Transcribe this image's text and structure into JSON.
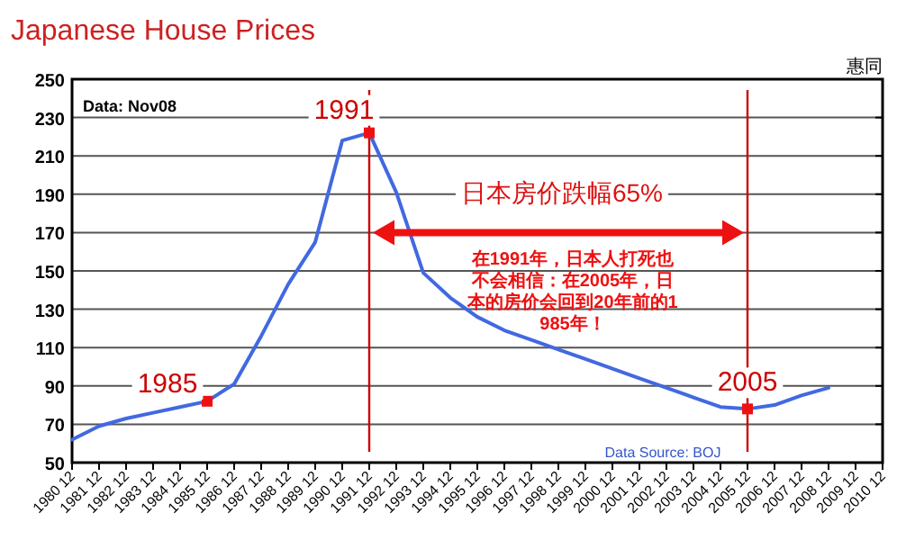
{
  "chart_data": {
    "type": "line",
    "title": "Japanese House Prices",
    "categories": [
      "1980 12",
      "1981 12",
      "1982 12",
      "1983 12",
      "1984 12",
      "1985 12",
      "1986 12",
      "1987 12",
      "1988 12",
      "1989 12",
      "1990 12",
      "1991 12",
      "1992 12",
      "1993 12",
      "1994 12",
      "1995 12",
      "1996 12",
      "1997 12",
      "1998 12",
      "1999 12",
      "2000 12",
      "2001 12",
      "2002 12",
      "2003 12",
      "2004 12",
      "2005 12",
      "2006 12",
      "2007 12",
      "2008 12",
      "2009 12",
      "2010 12"
    ],
    "series": [
      {
        "color": "#4169e1",
        "values": [
          62,
          69,
          73,
          76,
          79,
          82,
          91,
          116,
          143,
          165,
          218,
          222,
          191,
          149,
          136,
          126,
          119,
          114,
          109,
          104,
          99,
          94,
          89,
          84,
          79,
          78,
          80,
          85,
          89,
          null,
          null
        ]
      }
    ],
    "ylim": [
      50,
      250
    ],
    "yticks": [
      50,
      70,
      90,
      110,
      130,
      150,
      170,
      190,
      210,
      230,
      250
    ],
    "grid": "y",
    "marker": "none",
    "ref_lines": [
      {
        "axis": "x",
        "value": "1991 12",
        "color": "#cc0000"
      },
      {
        "axis": "x",
        "value": "2005 12",
        "color": "#cc0000"
      }
    ],
    "annotations": [
      {
        "text": "1985",
        "x": "1985 12",
        "y": 82
      },
      {
        "text": "1991",
        "x": "1991 12",
        "y": 222
      },
      {
        "text": "2005",
        "x": "2005 12",
        "y": 78
      },
      "日本房价跌幅65%",
      "在1991年，日本人打死也不会相信：在2005年，日本的房价会回到20年前的1985年！",
      "Data: Nov08",
      "Data Source: BOJ",
      "惠同"
    ]
  }
}
